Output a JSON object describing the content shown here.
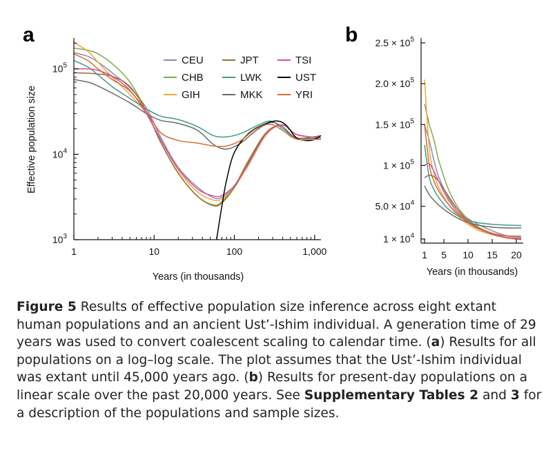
{
  "chart_data": [
    {
      "panel": "a",
      "type": "line",
      "xscale": "log",
      "yscale": "log",
      "xlabel": "Years (in thousands)",
      "ylabel": "Effective population size",
      "xlim": [
        1,
        1200
      ],
      "ylim": [
        1000,
        230000
      ],
      "x_ticks": [
        1,
        10,
        100,
        1000
      ],
      "x_tick_labels": [
        "1",
        "10",
        "100",
        "1,000"
      ],
      "y_ticks": [
        1000,
        10000,
        100000
      ],
      "y_tick_labels": [
        [
          "10",
          "3"
        ],
        [
          "10",
          "4"
        ],
        [
          "10",
          "5"
        ]
      ],
      "legend_position": "top-center",
      "series": [
        {
          "name": "CEU",
          "color": "#878cb9",
          "x": [
            1,
            1.5,
            2,
            3,
            5,
            8,
            12,
            20,
            35,
            55,
            70,
            100,
            150,
            250,
            400,
            600,
            1200
          ],
          "y": [
            155000,
            140000,
            120000,
            90000,
            60000,
            35000,
            16000,
            7000,
            4100,
            3100,
            3150,
            4200,
            7500,
            17000,
            22000,
            17000,
            15500
          ]
        },
        {
          "name": "CHB",
          "color": "#7fa94e",
          "x": [
            1,
            1.5,
            2,
            3,
            5,
            8,
            12,
            20,
            35,
            55,
            70,
            100,
            150,
            250,
            400,
            600,
            1200
          ],
          "y": [
            175000,
            165000,
            150000,
            115000,
            70000,
            32000,
            14000,
            6000,
            3200,
            2550,
            2800,
            4200,
            8500,
            18000,
            22000,
            17000,
            15500
          ]
        },
        {
          "name": "GIH",
          "color": "#efa838",
          "x": [
            1,
            1.5,
            2,
            3,
            5,
            8,
            12,
            20,
            35,
            55,
            70,
            100,
            150,
            250,
            400,
            600,
            1200
          ],
          "y": [
            205000,
            160000,
            120000,
            80000,
            50000,
            30000,
            15000,
            6500,
            3600,
            2900,
            3000,
            4100,
            7500,
            17000,
            22000,
            17000,
            15500
          ]
        },
        {
          "name": "JPT",
          "color": "#9c6c2a",
          "x": [
            1,
            1.5,
            2,
            3,
            5,
            8,
            12,
            20,
            35,
            55,
            70,
            100,
            150,
            250,
            400,
            600,
            1200
          ],
          "y": [
            90000,
            89000,
            87000,
            82000,
            62000,
            32000,
            14000,
            6000,
            3200,
            2500,
            2700,
            4100,
            8200,
            18000,
            22000,
            17000,
            15500
          ]
        },
        {
          "name": "LWK",
          "color": "#3e9a8c",
          "x": [
            1,
            1.5,
            2,
            3,
            5,
            8,
            12,
            20,
            35,
            55,
            80,
            120,
            180,
            280,
            400,
            600,
            1200
          ],
          "y": [
            125000,
            105000,
            85000,
            62000,
            45000,
            34000,
            28000,
            25500,
            21000,
            16500,
            16000,
            17500,
            21000,
            24500,
            20000,
            15500,
            15500
          ]
        },
        {
          "name": "MKK",
          "color": "#6a6a6a",
          "x": [
            1,
            1.5,
            2,
            3,
            5,
            8,
            12,
            20,
            35,
            55,
            80,
            120,
            180,
            280,
            400,
            600,
            1200
          ],
          "y": [
            75000,
            70000,
            63000,
            52000,
            40000,
            30000,
            25000,
            23000,
            19000,
            13000,
            11500,
            13500,
            18500,
            23500,
            21000,
            15500,
            16500
          ]
        },
        {
          "name": "TSI",
          "color": "#d94f9d",
          "x": [
            1,
            1.5,
            2,
            3,
            5,
            8,
            12,
            20,
            35,
            55,
            70,
            100,
            150,
            250,
            400,
            600,
            1200
          ],
          "y": [
            100000,
            100000,
            96000,
            82000,
            56000,
            30000,
            15000,
            6800,
            3900,
            3250,
            3300,
            4300,
            7800,
            17500,
            22000,
            17000,
            15500
          ]
        },
        {
          "name": "UST",
          "color": "#000000",
          "x": [
            60,
            70,
            80,
            100,
            150,
            250,
            350,
            450,
            600,
            900,
            1200
          ],
          "y": [
            1000,
            2500,
            5000,
            10500,
            17500,
            23000,
            24500,
            21500,
            15500,
            14500,
            16500
          ]
        },
        {
          "name": "YRI",
          "color": "#d56c33",
          "x": [
            1,
            1.5,
            2,
            3,
            5,
            8,
            12,
            20,
            35,
            55,
            80,
            120,
            180,
            280,
            400,
            600,
            1200
          ],
          "y": [
            150000,
            125000,
            100000,
            75000,
            55000,
            32000,
            18000,
            14500,
            13500,
            12500,
            12500,
            14500,
            19500,
            22500,
            19000,
            15000,
            15000
          ]
        }
      ]
    },
    {
      "panel": "b",
      "type": "line",
      "xscale": "linear",
      "yscale": "linear",
      "xlabel": "Years (in thousands)",
      "ylabel": "",
      "xlim": [
        1,
        21
      ],
      "ylim": [
        10000,
        250000
      ],
      "x_ticks": [
        1,
        5,
        10,
        15,
        20
      ],
      "x_tick_labels": [
        "1",
        "5",
        "10",
        "15",
        "20"
      ],
      "y_ticks": [
        10000,
        50000,
        100000,
        150000,
        200000,
        250000
      ],
      "y_tick_labels": [
        [
          "1 × 10",
          "4"
        ],
        [
          "5.0 × 10",
          "4"
        ],
        [
          "1 × 10",
          "5"
        ],
        [
          "1.5 × 10",
          "5"
        ],
        [
          "2.0 × 10",
          "5"
        ],
        [
          "2.5 × 10",
          "5"
        ]
      ],
      "series": [
        {
          "name": "CEU",
          "color": "#878cb9",
          "x": [
            1,
            2,
            3,
            4,
            6,
            8,
            10,
            12,
            15,
            18,
            21
          ],
          "y": [
            150000,
            130000,
            105000,
            85000,
            60000,
            45000,
            35000,
            28000,
            20000,
            14000,
            12000
          ]
        },
        {
          "name": "CHB",
          "color": "#7fa94e",
          "x": [
            1,
            2,
            3,
            4,
            6,
            8,
            10,
            12,
            15,
            18,
            21
          ],
          "y": [
            175000,
            150000,
            130000,
            105000,
            70000,
            48000,
            34000,
            25000,
            17000,
            12000,
            9500
          ]
        },
        {
          "name": "GIH",
          "color": "#efa838",
          "x": [
            1,
            2,
            3,
            4,
            6,
            8,
            10,
            12,
            15,
            18,
            21
          ],
          "y": [
            205000,
            120000,
            90000,
            72000,
            52000,
            38000,
            28000,
            21000,
            15000,
            11000,
            9000
          ]
        },
        {
          "name": "JPT",
          "color": "#9c6c2a",
          "x": [
            1,
            2,
            3,
            4,
            6,
            8,
            10,
            12,
            15,
            18,
            21
          ],
          "y": [
            85000,
            88000,
            86000,
            80000,
            62000,
            45000,
            32000,
            24000,
            16000,
            12000,
            9500
          ]
        },
        {
          "name": "LWK",
          "color": "#3e9a8c",
          "x": [
            1,
            2,
            3,
            4,
            6,
            8,
            10,
            12,
            15,
            18,
            21
          ],
          "y": [
            125000,
            85000,
            70000,
            60000,
            46000,
            38000,
            33000,
            30000,
            28000,
            27000,
            26500
          ]
        },
        {
          "name": "MKK",
          "color": "#6a6a6a",
          "x": [
            1,
            2,
            3,
            4,
            6,
            8,
            10,
            12,
            15,
            18,
            21
          ],
          "y": [
            75000,
            64000,
            57000,
            51000,
            42000,
            35000,
            30000,
            27000,
            24500,
            23500,
            23500
          ]
        },
        {
          "name": "TSI",
          "color": "#d94f9d",
          "x": [
            1,
            2,
            3,
            4,
            6,
            8,
            10,
            12,
            15,
            18,
            21
          ],
          "y": [
            100000,
            102000,
            92000,
            80000,
            57000,
            42000,
            31000,
            23000,
            16000,
            12000,
            10500
          ]
        },
        {
          "name": "YRI",
          "color": "#d56c33",
          "x": [
            1,
            2,
            3,
            4,
            6,
            8,
            10,
            12,
            15,
            18,
            21
          ],
          "y": [
            150000,
            100000,
            80000,
            68000,
            52000,
            40000,
            30000,
            23000,
            17000,
            14000,
            13500
          ]
        }
      ]
    }
  ],
  "caption": {
    "label": "Figure 5",
    "text1": "  Results of effective population size inference across eight extant human populations and an ancient Ust’-Ishim individual. A generation time of 29 years was used to convert coalescent scaling to calendar time. (",
    "a": "a",
    "text2": ") Results for all populations on a log–log scale. The plot assumes that the Ust’-Ishim individual was extant until 45,000 years ago. (",
    "b": "b",
    "text3": ") Results for present-day populations on a linear scale over the past 20,000 years. See ",
    "supp": "Supplementary Tables 2",
    "text4": " and ",
    "three": "3",
    "text5": " for a description of the populations and sample sizes."
  },
  "panel_labels": {
    "a": "a",
    "b": "b"
  }
}
